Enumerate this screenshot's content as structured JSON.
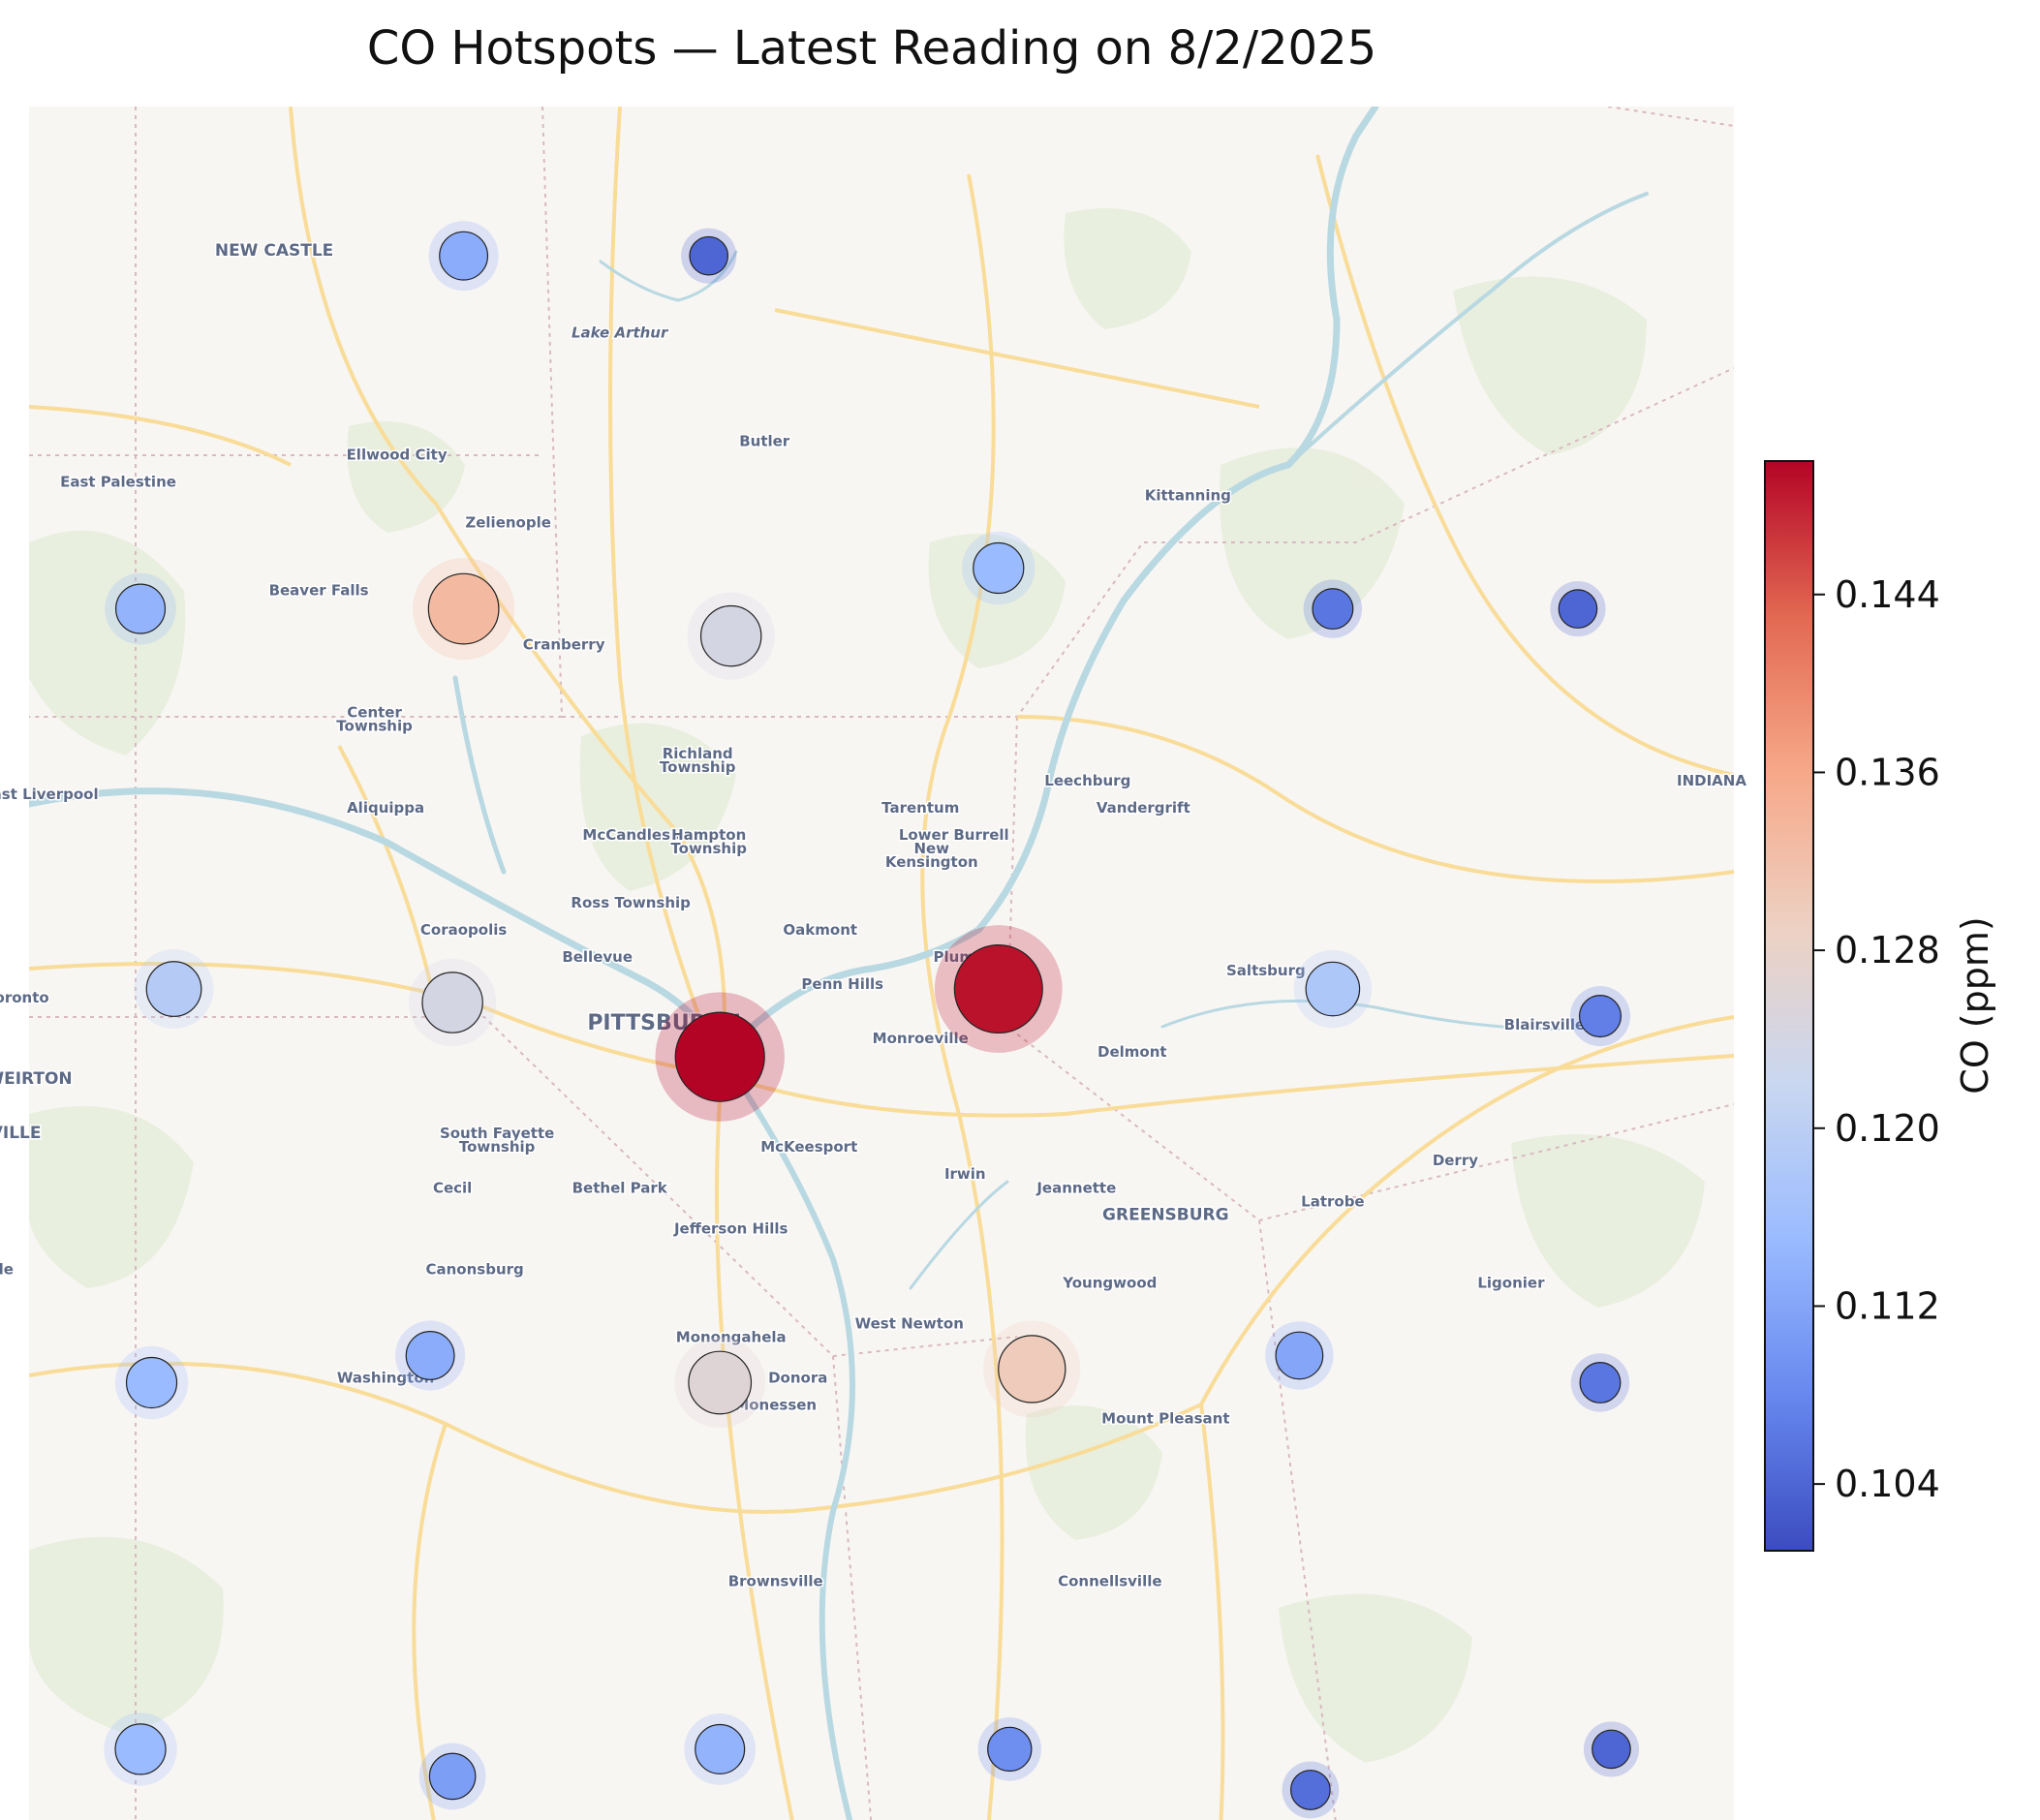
{
  "title": "CO Hotspots — Latest Reading on 8/2/2025",
  "colorbar": {
    "label": "CO (ppm)",
    "min": 0.101,
    "max": 0.15,
    "ticks": [
      0.104,
      0.112,
      0.12,
      0.128,
      0.136,
      0.144
    ],
    "tick_labels": [
      "0.104",
      "0.112",
      "0.120",
      "0.128",
      "0.136",
      "0.144"
    ],
    "colors": [
      "#3b4cc0",
      "#6788ee",
      "#9abbff",
      "#c9d7f0",
      "#edd1c2",
      "#f7a889",
      "#e26952",
      "#b40426"
    ]
  },
  "map": {
    "lon_range": [
      -80.56,
      -79.03
    ],
    "lat_range": [
      39.84,
      41.11
    ],
    "places": [
      {
        "name": "NEW CASTLE",
        "lon": -80.34,
        "lat": 41.0,
        "size": "l"
      },
      {
        "name": "Lake Arthur",
        "lon": -80.03,
        "lat": 40.94,
        "size": "s",
        "water": true
      },
      {
        "name": "Ellwood City",
        "lon": -80.23,
        "lat": 40.85,
        "size": "s"
      },
      {
        "name": "Butler",
        "lon": -79.9,
        "lat": 40.86,
        "size": "s"
      },
      {
        "name": "East Palestine",
        "lon": -80.48,
        "lat": 40.83,
        "size": "s"
      },
      {
        "name": "Kittanning",
        "lon": -79.52,
        "lat": 40.82,
        "size": "s"
      },
      {
        "name": "Zelienople",
        "lon": -80.13,
        "lat": 40.8,
        "size": "s"
      },
      {
        "name": "Beaver Falls",
        "lon": -80.3,
        "lat": 40.75,
        "size": "s"
      },
      {
        "name": "Cranberry",
        "lon": -80.08,
        "lat": 40.71,
        "size": "s"
      },
      {
        "name": "Center",
        "lon": -80.25,
        "lat": 40.66,
        "size": "s"
      },
      {
        "name": "Township",
        "lon": -80.25,
        "lat": 40.65,
        "size": "s"
      },
      {
        "name": "Richland",
        "lon": -79.96,
        "lat": 40.63,
        "size": "s"
      },
      {
        "name": "Township",
        "lon": -79.96,
        "lat": 40.62,
        "size": "s"
      },
      {
        "name": "Leechburg",
        "lon": -79.61,
        "lat": 40.61,
        "size": "s"
      },
      {
        "name": "East Liverpool",
        "lon": -80.55,
        "lat": 40.6,
        "size": "s"
      },
      {
        "name": "INDIANA",
        "lon": -79.05,
        "lat": 40.61,
        "size": "s"
      },
      {
        "name": "Aliquippa",
        "lon": -80.24,
        "lat": 40.59,
        "size": "s"
      },
      {
        "name": "Tarentum",
        "lon": -79.76,
        "lat": 40.59,
        "size": "s"
      },
      {
        "name": "Vandergrift",
        "lon": -79.56,
        "lat": 40.59,
        "size": "s"
      },
      {
        "name": "Lower Burrell",
        "lon": -79.73,
        "lat": 40.57,
        "size": "s"
      },
      {
        "name": "McCandless",
        "lon": -80.02,
        "lat": 40.57,
        "size": "s"
      },
      {
        "name": "Hampton",
        "lon": -79.95,
        "lat": 40.57,
        "size": "s"
      },
      {
        "name": "Township",
        "lon": -79.95,
        "lat": 40.56,
        "size": "s"
      },
      {
        "name": "New",
        "lon": -79.75,
        "lat": 40.56,
        "size": "s"
      },
      {
        "name": "Kensington",
        "lon": -79.75,
        "lat": 40.55,
        "size": "s"
      },
      {
        "name": "Ross Township",
        "lon": -80.02,
        "lat": 40.52,
        "size": "s"
      },
      {
        "name": "Coraopolis",
        "lon": -80.17,
        "lat": 40.5,
        "size": "s"
      },
      {
        "name": "Oakmont",
        "lon": -79.85,
        "lat": 40.5,
        "size": "s"
      },
      {
        "name": "Bellevue",
        "lon": -80.05,
        "lat": 40.48,
        "size": "s"
      },
      {
        "name": "Plum",
        "lon": -79.73,
        "lat": 40.48,
        "size": "s"
      },
      {
        "name": "Saltsburg",
        "lon": -79.45,
        "lat": 40.47,
        "size": "s"
      },
      {
        "name": "Toronto",
        "lon": -80.57,
        "lat": 40.45,
        "size": "s"
      },
      {
        "name": "Penn Hills",
        "lon": -79.83,
        "lat": 40.46,
        "size": "s"
      },
      {
        "name": "PITTSBURGH",
        "lon": -79.99,
        "lat": 40.43,
        "size": "xl"
      },
      {
        "name": "Monroeville",
        "lon": -79.76,
        "lat": 40.42,
        "size": "s"
      },
      {
        "name": "Blairsville",
        "lon": -79.2,
        "lat": 40.43,
        "size": "s"
      },
      {
        "name": "Delmont",
        "lon": -79.57,
        "lat": 40.41,
        "size": "s"
      },
      {
        "name": "WEIRTON",
        "lon": -80.56,
        "lat": 40.39,
        "size": "m"
      },
      {
        "name": "WELLSVILLE",
        "lon": -80.6,
        "lat": 40.35,
        "size": "m"
      },
      {
        "name": "South Fayette",
        "lon": -80.14,
        "lat": 40.35,
        "size": "s"
      },
      {
        "name": "Township",
        "lon": -80.14,
        "lat": 40.34,
        "size": "s"
      },
      {
        "name": "McKeesport",
        "lon": -79.86,
        "lat": 40.34,
        "size": "s"
      },
      {
        "name": "Cecil",
        "lon": -80.18,
        "lat": 40.31,
        "size": "s"
      },
      {
        "name": "Bethel Park",
        "lon": -80.03,
        "lat": 40.31,
        "size": "s"
      },
      {
        "name": "Irwin",
        "lon": -79.72,
        "lat": 40.32,
        "size": "s"
      },
      {
        "name": "Jeannette",
        "lon": -79.62,
        "lat": 40.31,
        "size": "s"
      },
      {
        "name": "Derry",
        "lon": -79.28,
        "lat": 40.33,
        "size": "s"
      },
      {
        "name": "Latrobe",
        "lon": -79.39,
        "lat": 40.3,
        "size": "s"
      },
      {
        "name": "GREENSBURG",
        "lon": -79.54,
        "lat": 40.29,
        "size": "m"
      },
      {
        "name": "Jefferson Hills",
        "lon": -79.93,
        "lat": 40.28,
        "size": "s"
      },
      {
        "name": "Steubenville",
        "lon": -80.62,
        "lat": 40.25,
        "size": "s"
      },
      {
        "name": "Canonsburg",
        "lon": -80.16,
        "lat": 40.25,
        "size": "s"
      },
      {
        "name": "Youngwood",
        "lon": -79.59,
        "lat": 40.24,
        "size": "s"
      },
      {
        "name": "Ligonier",
        "lon": -79.23,
        "lat": 40.24,
        "size": "s"
      },
      {
        "name": "West Newton",
        "lon": -79.77,
        "lat": 40.21,
        "size": "s"
      },
      {
        "name": "Monongahela",
        "lon": -79.93,
        "lat": 40.2,
        "size": "s"
      },
      {
        "name": "Donora",
        "lon": -79.87,
        "lat": 40.17,
        "size": "s"
      },
      {
        "name": "Washington",
        "lon": -80.24,
        "lat": 40.17,
        "size": "s"
      },
      {
        "name": "Monessen",
        "lon": -79.89,
        "lat": 40.15,
        "size": "s"
      },
      {
        "name": "Mount Pleasant",
        "lon": -79.54,
        "lat": 40.14,
        "size": "s"
      },
      {
        "name": "Brownsville",
        "lon": -79.89,
        "lat": 40.02,
        "size": "s"
      },
      {
        "name": "Connellsville",
        "lon": -79.59,
        "lat": 40.02,
        "size": "s"
      }
    ]
  },
  "chart_data": {
    "type": "scatter",
    "title": "CO Hotspots — Latest Reading on 8/2/2025",
    "xlabel": "",
    "ylabel": "",
    "colorbar_label": "CO (ppm)",
    "points": [
      {
        "lon": -80.17,
        "lat": 41.0,
        "co": 0.113
      },
      {
        "lon": -79.95,
        "lat": 41.0,
        "co": 0.104
      },
      {
        "lon": -80.46,
        "lat": 40.74,
        "co": 0.114
      },
      {
        "lon": -80.17,
        "lat": 40.74,
        "co": 0.133
      },
      {
        "lon": -79.93,
        "lat": 40.72,
        "co": 0.124
      },
      {
        "lon": -79.69,
        "lat": 40.77,
        "co": 0.115
      },
      {
        "lon": -79.39,
        "lat": 40.74,
        "co": 0.106
      },
      {
        "lon": -79.17,
        "lat": 40.74,
        "co": 0.104
      },
      {
        "lon": -80.43,
        "lat": 40.46,
        "co": 0.119
      },
      {
        "lon": -80.18,
        "lat": 40.45,
        "co": 0.124
      },
      {
        "lon": -79.94,
        "lat": 40.41,
        "co": 0.15
      },
      {
        "lon": -79.69,
        "lat": 40.46,
        "co": 0.149
      },
      {
        "lon": -79.39,
        "lat": 40.46,
        "co": 0.118
      },
      {
        "lon": -79.15,
        "lat": 40.44,
        "co": 0.107
      },
      {
        "lon": -80.45,
        "lat": 40.17,
        "co": 0.115
      },
      {
        "lon": -80.2,
        "lat": 40.19,
        "co": 0.113
      },
      {
        "lon": -79.94,
        "lat": 40.17,
        "co": 0.126
      },
      {
        "lon": -79.66,
        "lat": 40.18,
        "co": 0.13
      },
      {
        "lon": -79.42,
        "lat": 40.19,
        "co": 0.112
      },
      {
        "lon": -79.15,
        "lat": 40.17,
        "co": 0.106
      },
      {
        "lon": -80.46,
        "lat": 39.9,
        "co": 0.115
      },
      {
        "lon": -80.18,
        "lat": 39.88,
        "co": 0.111
      },
      {
        "lon": -79.94,
        "lat": 39.9,
        "co": 0.114
      },
      {
        "lon": -79.68,
        "lat": 39.9,
        "co": 0.109
      },
      {
        "lon": -79.41,
        "lat": 39.87,
        "co": 0.105
      },
      {
        "lon": -79.14,
        "lat": 39.9,
        "co": 0.104
      }
    ]
  }
}
